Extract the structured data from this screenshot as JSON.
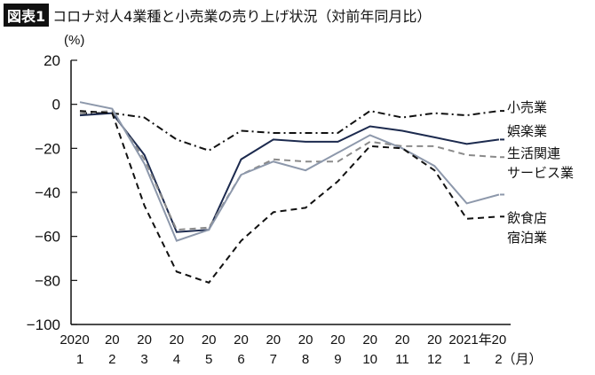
{
  "header": {
    "badge": "図表1",
    "title": "コロナ対人4業種と小売業の売り上げ状況（対前年同月比）"
  },
  "chart_data": {
    "type": "line",
    "title": "コロナ対人4業種と小売業の売り上げ状況（対前年同月比）",
    "ylabel": "(%)",
    "ylim": [
      -100,
      20
    ],
    "yticks": [
      "20",
      "0",
      "−20",
      "−40",
      "−60",
      "−80",
      "−100"
    ],
    "ytick_values": [
      20,
      0,
      -20,
      -40,
      -60,
      -80,
      -100
    ],
    "x_top": [
      "2020",
      "20",
      "20",
      "20",
      "20",
      "20",
      "20",
      "20",
      "20",
      "20",
      "20",
      "20",
      "2021年",
      "20"
    ],
    "x_bottom": [
      "1",
      "2",
      "3",
      "4",
      "5",
      "6",
      "7",
      "8",
      "9",
      "10",
      "11",
      "12",
      "1",
      "2（月）"
    ],
    "grid": false,
    "legend": "right, labels at line ends",
    "series": [
      {
        "name": "小売業",
        "style": "dashdot",
        "color": "#111111",
        "values": [
          -4,
          -4,
          -6,
          -16,
          -21,
          -12,
          -13,
          -13,
          -13,
          -3,
          -6,
          -4,
          -5,
          -3
        ]
      },
      {
        "name": "娯楽業",
        "style": "solid",
        "color": "#1c2a4e",
        "values": [
          -5,
          -4,
          -23,
          -58,
          -57,
          -25,
          -16,
          -17,
          -17,
          -10,
          -12,
          -15,
          -18,
          -16
        ]
      },
      {
        "name": "生活関連サービス業",
        "style": "dashed",
        "color": "#8a8a8a",
        "values": [
          -4,
          -3,
          -25,
          -57,
          -56,
          -32,
          -25,
          -26,
          -26,
          -17,
          -19,
          -19,
          -23,
          -24
        ]
      },
      {
        "name": "飲食店",
        "style": "solid",
        "color": "#8d98ab",
        "values": [
          1,
          -2,
          -27,
          -62,
          -57,
          -32,
          -26,
          -30,
          -22,
          -14,
          -20,
          -28,
          -45,
          -41
        ]
      },
      {
        "name": "宿泊業",
        "style": "dashed",
        "color": "#111111",
        "values": [
          -3,
          -4,
          -46,
          -76,
          -81,
          -62,
          -49,
          -47,
          -35,
          -19,
          -20,
          -30,
          -52,
          -51
        ]
      }
    ],
    "legend_lines": [
      [
        "小売業"
      ],
      [
        "娯楽業"
      ],
      [
        "生活関連",
        "サービス業"
      ],
      [
        "飲食店"
      ],
      [
        "宿泊業"
      ]
    ]
  }
}
